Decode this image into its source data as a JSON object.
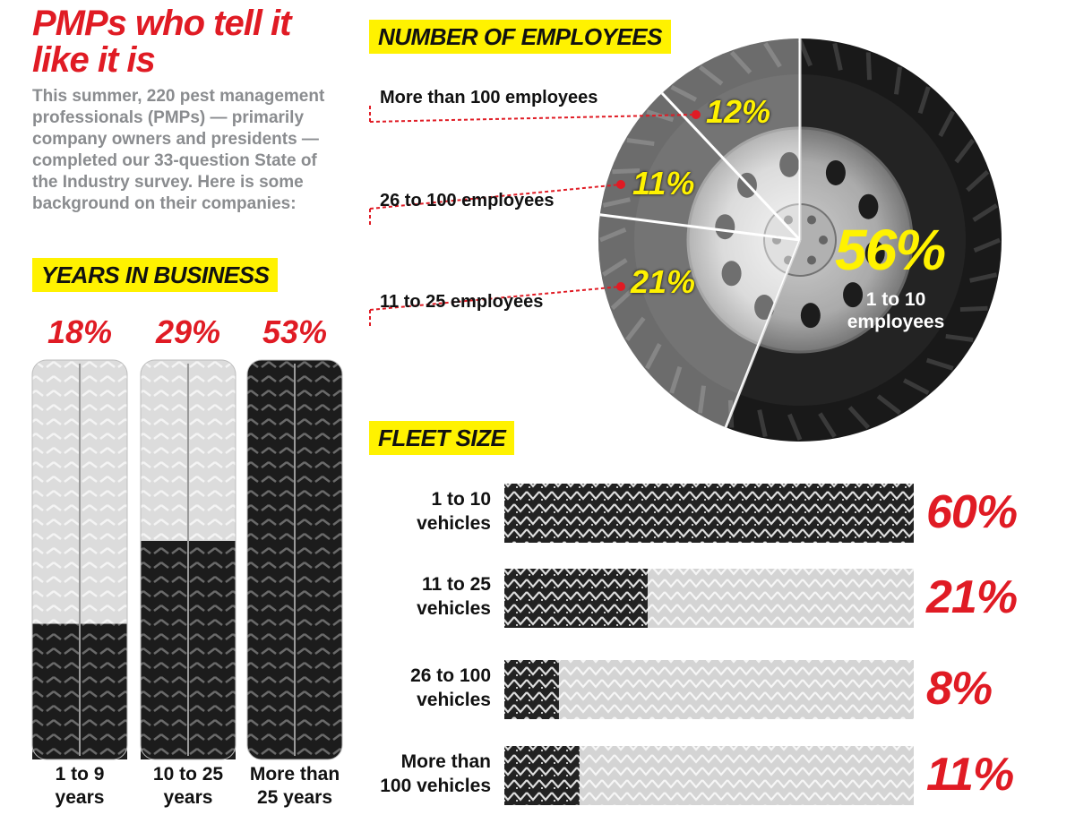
{
  "title": "PMPs who tell it like it is",
  "intro": "This summer, 220 pest management professionals (PMPs) — primarily company owners and presidents — completed our 33-question State of the Industry survey. Here is some background on their companies:",
  "colors": {
    "accent_red": "#e01b24",
    "label_yellow": "#fff200",
    "tire_dark": "#1a1a1a",
    "tire_light": "#d8d8d8"
  },
  "chart_data": [
    {
      "type": "bar",
      "title": "YEARS IN BUSINESS",
      "categories": [
        "1 to 9 years",
        "10 to 25 years",
        "More than 25 years"
      ],
      "category_lines": [
        [
          "1 to 9",
          "years"
        ],
        [
          "10 to 25",
          "years"
        ],
        [
          "More than",
          "25 years"
        ]
      ],
      "values": [
        18,
        29,
        53
      ],
      "labels": [
        "18%",
        "29%",
        "53%"
      ],
      "ylim": [
        0,
        100
      ]
    },
    {
      "type": "pie",
      "title": "NUMBER OF EMPLOYEES",
      "categories": [
        "More than 100 employees",
        "26 to 100 employees",
        "11 to 25 employees",
        "1 to 10 employees"
      ],
      "values": [
        12,
        11,
        21,
        56
      ],
      "labels": [
        "12%",
        "11%",
        "21%",
        "56%"
      ]
    },
    {
      "type": "bar",
      "title": "FLEET SIZE",
      "categories": [
        "1 to 10 vehicles",
        "11 to 25 vehicles",
        "26 to 100 vehicles",
        "More than 100 vehicles"
      ],
      "category_lines": [
        [
          "1 to 10",
          "vehicles"
        ],
        [
          "11 to 25",
          "vehicles"
        ],
        [
          "26 to 100",
          "vehicles"
        ],
        [
          "More than",
          "100 vehicles"
        ]
      ],
      "values": [
        60,
        21,
        8,
        11
      ],
      "labels": [
        "60%",
        "21%",
        "8%",
        "11%"
      ],
      "xlim": [
        0,
        60
      ]
    }
  ]
}
